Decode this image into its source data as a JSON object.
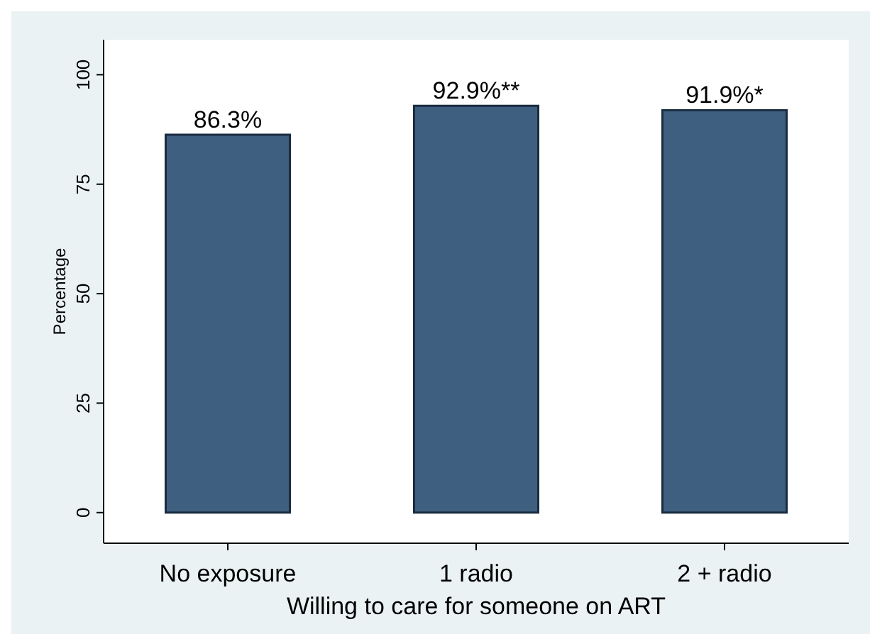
{
  "chart_data": {
    "type": "bar",
    "xlabel": "Willing to care for someone on ART",
    "ylabel": "Percentage",
    "categories": [
      "No exposure",
      "1 radio",
      "2 + radio"
    ],
    "values": [
      86.3,
      92.9,
      91.9
    ],
    "value_labels": [
      "86.3%",
      "92.9%**",
      "91.9%*"
    ],
    "color": "#3e5f7f",
    "ylim": [
      -7,
      108
    ],
    "yticks": [
      0,
      25,
      50,
      75,
      100
    ],
    "grid": false
  }
}
